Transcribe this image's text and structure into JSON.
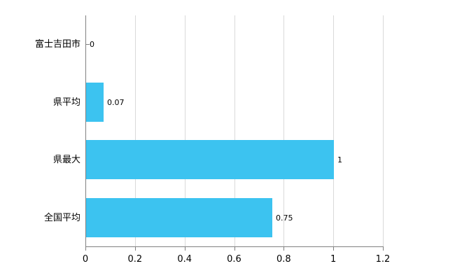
{
  "chart_data": {
    "type": "bar",
    "orientation": "horizontal",
    "title": "",
    "categories": [
      "富士吉田市",
      "県平均",
      "県最大",
      "全国平均"
    ],
    "values": [
      0,
      0.07,
      1,
      0.75
    ],
    "value_labels": [
      "0",
      "0.07",
      "1",
      "0.75"
    ],
    "xlim": [
      0,
      1.2
    ],
    "xticks": [
      0,
      0.2,
      0.4,
      0.6,
      0.8,
      1,
      1.2
    ],
    "xtick_labels": [
      "0",
      "0.2",
      "0.4",
      "0.6",
      "0.8",
      "1",
      "1.2"
    ],
    "bar_color": "#3cc3f0",
    "grid": true,
    "legend": "none"
  }
}
